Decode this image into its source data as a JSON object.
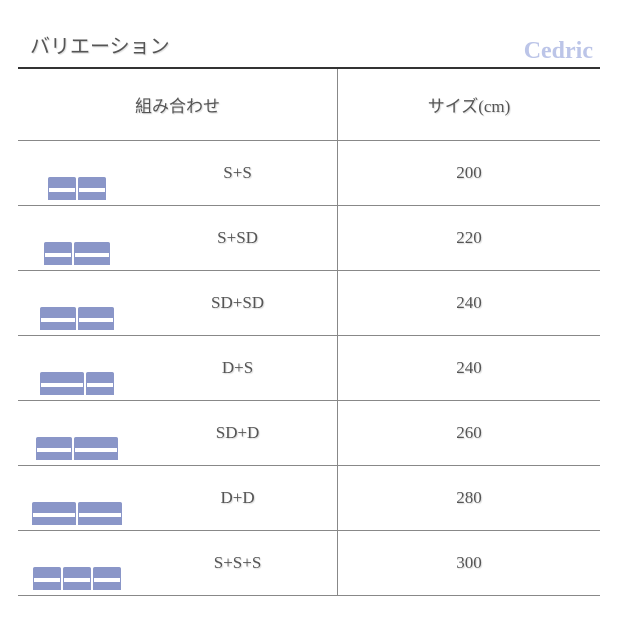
{
  "brand": "Cedric",
  "title": "バリエーション",
  "headers": {
    "combo": "組み合わせ",
    "size": "サイズ(cm)"
  },
  "bed_colors": {
    "fill": "#8a96c8",
    "stroke": "#8a96c8",
    "mat_fill": "#ffffff"
  },
  "size_widths": {
    "S": 28,
    "SD": 36,
    "D": 44
  },
  "rows": [
    {
      "combo": "S+S",
      "size": "200",
      "units": [
        "S",
        "S"
      ]
    },
    {
      "combo": "S+SD",
      "size": "220",
      "units": [
        "S",
        "SD"
      ]
    },
    {
      "combo": "SD+SD",
      "size": "240",
      "units": [
        "SD",
        "SD"
      ]
    },
    {
      "combo": "D+S",
      "size": "240",
      "units": [
        "D",
        "S"
      ]
    },
    {
      "combo": "SD+D",
      "size": "260",
      "units": [
        "SD",
        "D"
      ]
    },
    {
      "combo": "D+D",
      "size": "280",
      "units": [
        "D",
        "D"
      ]
    },
    {
      "combo": "S+S+S",
      "size": "300",
      "units": [
        "S",
        "S",
        "S"
      ]
    }
  ]
}
